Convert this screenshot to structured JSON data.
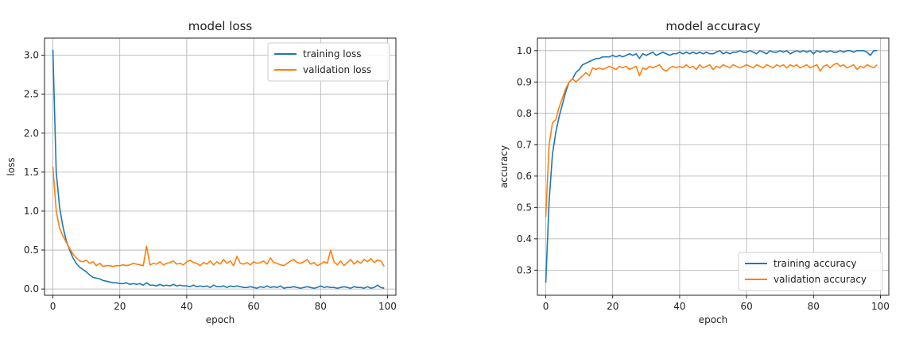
{
  "chart_data": [
    {
      "type": "line",
      "title": "model loss",
      "xlabel": "epoch",
      "ylabel": "loss",
      "xlim": [
        -2.5,
        102.5
      ],
      "ylim": [
        -0.08,
        3.22
      ],
      "xticks": [
        0,
        20,
        40,
        60,
        80,
        100
      ],
      "xtick_labels": [
        "0",
        "20",
        "40",
        "60",
        "80",
        "100"
      ],
      "yticks": [
        0.0,
        0.5,
        1.0,
        1.5,
        2.0,
        2.5,
        3.0
      ],
      "ytick_labels": [
        "0.0",
        "0.5",
        "1.0",
        "1.5",
        "2.0",
        "2.5",
        "3.0"
      ],
      "grid": true,
      "legend_position": "top-right",
      "series": [
        {
          "name": "training loss",
          "color": "#1f77b4",
          "x": [
            0,
            1,
            2,
            3,
            4,
            5,
            6,
            7,
            8,
            9,
            10,
            11,
            12,
            13,
            14,
            15,
            16,
            17,
            18,
            19,
            20,
            21,
            22,
            23,
            24,
            25,
            26,
            27,
            28,
            29,
            30,
            31,
            32,
            33,
            34,
            35,
            36,
            37,
            38,
            39,
            40,
            41,
            42,
            43,
            44,
            45,
            46,
            47,
            48,
            49,
            50,
            51,
            52,
            53,
            54,
            55,
            56,
            57,
            58,
            59,
            60,
            61,
            62,
            63,
            64,
            65,
            66,
            67,
            68,
            69,
            70,
            71,
            72,
            73,
            74,
            75,
            76,
            77,
            78,
            79,
            80,
            81,
            82,
            83,
            84,
            85,
            86,
            87,
            88,
            89,
            90,
            91,
            92,
            93,
            94,
            95,
            96,
            97,
            98,
            99
          ],
          "values": [
            3.07,
            1.5,
            1.05,
            0.8,
            0.62,
            0.5,
            0.4,
            0.33,
            0.28,
            0.25,
            0.22,
            0.18,
            0.15,
            0.14,
            0.13,
            0.11,
            0.1,
            0.09,
            0.08,
            0.08,
            0.07,
            0.07,
            0.08,
            0.06,
            0.07,
            0.06,
            0.07,
            0.05,
            0.08,
            0.05,
            0.05,
            0.04,
            0.06,
            0.04,
            0.05,
            0.04,
            0.06,
            0.04,
            0.05,
            0.04,
            0.04,
            0.03,
            0.05,
            0.03,
            0.04,
            0.03,
            0.04,
            0.02,
            0.05,
            0.03,
            0.03,
            0.04,
            0.02,
            0.04,
            0.03,
            0.04,
            0.03,
            0.02,
            0.02,
            0.03,
            0.02,
            0.01,
            0.03,
            0.02,
            0.04,
            0.02,
            0.03,
            0.02,
            0.04,
            0.01,
            0.02,
            0.02,
            0.03,
            0.02,
            0.01,
            0.02,
            0.03,
            0.02,
            0.01,
            0.02,
            0.04,
            0.02,
            0.03,
            0.02,
            0.02,
            0.01,
            0.02,
            0.03,
            0.02,
            0.01,
            0.03,
            0.02,
            0.02,
            0.01,
            0.03,
            0.01,
            0.02,
            0.05,
            0.02,
            0.01
          ]
        },
        {
          "name": "validation loss",
          "color": "#ff7f0e",
          "x": [
            0,
            1,
            2,
            3,
            4,
            5,
            6,
            7,
            8,
            9,
            10,
            11,
            12,
            13,
            14,
            15,
            16,
            17,
            18,
            19,
            20,
            21,
            22,
            23,
            24,
            25,
            26,
            27,
            28,
            29,
            30,
            31,
            32,
            33,
            34,
            35,
            36,
            37,
            38,
            39,
            40,
            41,
            42,
            43,
            44,
            45,
            46,
            47,
            48,
            49,
            50,
            51,
            52,
            53,
            54,
            55,
            56,
            57,
            58,
            59,
            60,
            61,
            62,
            63,
            64,
            65,
            66,
            67,
            68,
            69,
            70,
            71,
            72,
            73,
            74,
            75,
            76,
            77,
            78,
            79,
            80,
            81,
            82,
            83,
            84,
            85,
            86,
            87,
            88,
            89,
            90,
            91,
            92,
            93,
            94,
            95,
            96,
            97,
            98,
            99
          ],
          "values": [
            1.57,
            1.0,
            0.78,
            0.68,
            0.6,
            0.52,
            0.45,
            0.4,
            0.36,
            0.35,
            0.37,
            0.33,
            0.35,
            0.3,
            0.33,
            0.29,
            0.3,
            0.3,
            0.29,
            0.3,
            0.3,
            0.31,
            0.3,
            0.31,
            0.33,
            0.32,
            0.31,
            0.3,
            0.55,
            0.31,
            0.33,
            0.32,
            0.35,
            0.31,
            0.33,
            0.34,
            0.36,
            0.32,
            0.33,
            0.31,
            0.35,
            0.37,
            0.34,
            0.33,
            0.3,
            0.34,
            0.32,
            0.36,
            0.31,
            0.35,
            0.32,
            0.38,
            0.33,
            0.36,
            0.3,
            0.42,
            0.33,
            0.32,
            0.34,
            0.31,
            0.35,
            0.33,
            0.34,
            0.36,
            0.32,
            0.4,
            0.34,
            0.33,
            0.31,
            0.3,
            0.33,
            0.36,
            0.38,
            0.34,
            0.33,
            0.35,
            0.38,
            0.32,
            0.34,
            0.3,
            0.32,
            0.35,
            0.33,
            0.5,
            0.35,
            0.31,
            0.36,
            0.3,
            0.34,
            0.38,
            0.32,
            0.36,
            0.33,
            0.38,
            0.35,
            0.39,
            0.34,
            0.37,
            0.36,
            0.29
          ]
        }
      ]
    },
    {
      "type": "line",
      "title": "model accuracy",
      "xlabel": "epoch",
      "ylabel": "accuracy",
      "xlim": [
        -2.5,
        102.5
      ],
      "ylim": [
        0.22,
        1.04
      ],
      "xticks": [
        0,
        20,
        40,
        60,
        80,
        100
      ],
      "xtick_labels": [
        "0",
        "20",
        "40",
        "60",
        "80",
        "100"
      ],
      "yticks": [
        0.3,
        0.4,
        0.5,
        0.6,
        0.7,
        0.8,
        0.9,
        1.0
      ],
      "ytick_labels": [
        "0.3",
        "0.4",
        "0.5",
        "0.6",
        "0.7",
        "0.8",
        "0.9",
        "1.0"
      ],
      "grid": true,
      "legend_position": "bottom-right",
      "series": [
        {
          "name": "training accuracy",
          "color": "#1f77b4",
          "x": [
            0,
            1,
            2,
            3,
            4,
            5,
            6,
            7,
            8,
            9,
            10,
            11,
            12,
            13,
            14,
            15,
            16,
            17,
            18,
            19,
            20,
            21,
            22,
            23,
            24,
            25,
            26,
            27,
            28,
            29,
            30,
            31,
            32,
            33,
            34,
            35,
            36,
            37,
            38,
            39,
            40,
            41,
            42,
            43,
            44,
            45,
            46,
            47,
            48,
            49,
            50,
            51,
            52,
            53,
            54,
            55,
            56,
            57,
            58,
            59,
            60,
            61,
            62,
            63,
            64,
            65,
            66,
            67,
            68,
            69,
            70,
            71,
            72,
            73,
            74,
            75,
            76,
            77,
            78,
            79,
            80,
            81,
            82,
            83,
            84,
            85,
            86,
            87,
            88,
            89,
            90,
            91,
            92,
            93,
            94,
            95,
            96,
            97,
            98,
            99
          ],
          "values": [
            0.26,
            0.52,
            0.67,
            0.74,
            0.79,
            0.83,
            0.87,
            0.9,
            0.91,
            0.93,
            0.94,
            0.955,
            0.96,
            0.965,
            0.97,
            0.975,
            0.975,
            0.98,
            0.98,
            0.98,
            0.985,
            0.98,
            0.985,
            0.98,
            0.985,
            0.99,
            0.985,
            0.99,
            0.975,
            0.99,
            0.985,
            0.99,
            0.995,
            0.985,
            0.99,
            0.995,
            0.99,
            0.985,
            0.99,
            0.99,
            0.995,
            0.99,
            0.995,
            0.99,
            0.995,
            0.99,
            0.995,
            0.99,
            0.995,
            0.99,
            0.99,
            0.995,
            1.0,
            0.99,
            0.995,
            0.99,
            0.995,
            0.995,
            1.0,
            0.995,
            0.995,
            1.0,
            0.995,
            0.99,
            1.0,
            0.995,
            0.99,
            1.0,
            0.995,
            0.995,
            1.0,
            0.995,
            1.0,
            0.99,
            0.995,
            1.0,
            0.995,
            1.0,
            0.995,
            1.0,
            0.99,
            1.0,
            0.995,
            1.0,
            0.995,
            1.0,
            0.995,
            0.995,
            1.0,
            0.995,
            1.0,
            1.0,
            0.995,
            1.0,
            1.0,
            1.0,
            0.995,
            0.985,
            1.0,
            1.0
          ]
        },
        {
          "name": "validation accuracy",
          "color": "#ff7f0e",
          "x": [
            0,
            1,
            2,
            3,
            4,
            5,
            6,
            7,
            8,
            9,
            10,
            11,
            12,
            13,
            14,
            15,
            16,
            17,
            18,
            19,
            20,
            21,
            22,
            23,
            24,
            25,
            26,
            27,
            28,
            29,
            30,
            31,
            32,
            33,
            34,
            35,
            36,
            37,
            38,
            39,
            40,
            41,
            42,
            43,
            44,
            45,
            46,
            47,
            48,
            49,
            50,
            51,
            52,
            53,
            54,
            55,
            56,
            57,
            58,
            59,
            60,
            61,
            62,
            63,
            64,
            65,
            66,
            67,
            68,
            69,
            70,
            71,
            72,
            73,
            74,
            75,
            76,
            77,
            78,
            79,
            80,
            81,
            82,
            83,
            84,
            85,
            86,
            87,
            88,
            89,
            90,
            91,
            92,
            93,
            94,
            95,
            96,
            97,
            98,
            99
          ],
          "values": [
            0.47,
            0.7,
            0.77,
            0.78,
            0.82,
            0.85,
            0.88,
            0.9,
            0.91,
            0.9,
            0.91,
            0.92,
            0.93,
            0.92,
            0.945,
            0.94,
            0.945,
            0.94,
            0.945,
            0.95,
            0.945,
            0.94,
            0.95,
            0.945,
            0.95,
            0.94,
            0.945,
            0.95,
            0.92,
            0.945,
            0.94,
            0.95,
            0.945,
            0.95,
            0.955,
            0.94,
            0.935,
            0.945,
            0.95,
            0.945,
            0.95,
            0.945,
            0.955,
            0.945,
            0.95,
            0.94,
            0.955,
            0.945,
            0.95,
            0.955,
            0.94,
            0.95,
            0.945,
            0.955,
            0.95,
            0.945,
            0.955,
            0.95,
            0.945,
            0.95,
            0.955,
            0.95,
            0.945,
            0.955,
            0.95,
            0.945,
            0.955,
            0.95,
            0.945,
            0.955,
            0.95,
            0.955,
            0.945,
            0.955,
            0.95,
            0.955,
            0.945,
            0.95,
            0.955,
            0.945,
            0.95,
            0.955,
            0.935,
            0.95,
            0.955,
            0.945,
            0.955,
            0.96,
            0.95,
            0.955,
            0.945,
            0.95,
            0.955,
            0.94,
            0.95,
            0.945,
            0.955,
            0.95,
            0.945,
            0.955
          ]
        }
      ]
    }
  ]
}
